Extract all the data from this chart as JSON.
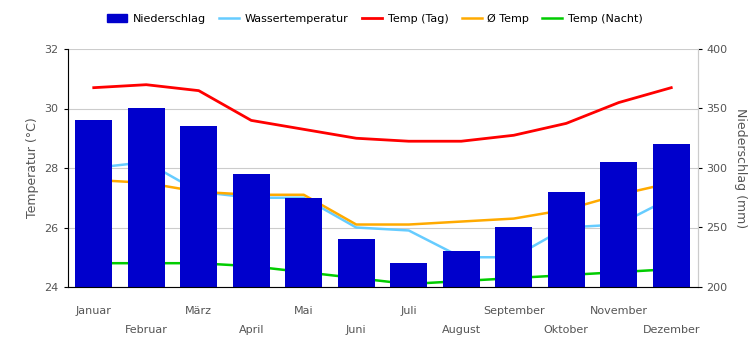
{
  "months": [
    "Januar",
    "Februar",
    "März",
    "April",
    "Mai",
    "Juni",
    "Juli",
    "August",
    "September",
    "Oktober",
    "November",
    "Dezember"
  ],
  "niederschlag": [
    340,
    350,
    335,
    295,
    275,
    240,
    220,
    230,
    250,
    280,
    305,
    320
  ],
  "wassertemperatur": [
    28.0,
    28.2,
    27.2,
    27.0,
    27.0,
    26.0,
    25.9,
    25.0,
    25.0,
    26.0,
    26.1,
    27.0
  ],
  "temp_tag": [
    30.7,
    30.8,
    30.6,
    29.6,
    29.3,
    29.0,
    28.9,
    28.9,
    29.1,
    29.5,
    30.2,
    30.7
  ],
  "avg_temp": [
    27.6,
    27.5,
    27.2,
    27.1,
    27.1,
    26.1,
    26.1,
    26.2,
    26.3,
    26.6,
    27.1,
    27.5
  ],
  "temp_nacht": [
    24.8,
    24.8,
    24.8,
    24.7,
    24.5,
    24.3,
    24.1,
    24.2,
    24.3,
    24.4,
    24.5,
    24.6
  ],
  "bar_color": "#0000cc",
  "wasser_color": "#66ccff",
  "tag_color": "#ff0000",
  "avg_color": "#ffaa00",
  "nacht_color": "#00cc00",
  "ylabel_left": "Temperatur (°C)",
  "ylabel_right": "Niederschlag (mm)",
  "ylim_left": [
    24,
    32
  ],
  "ylim_right": [
    200,
    400
  ],
  "yticks_left": [
    24,
    26,
    28,
    30,
    32
  ],
  "yticks_right": [
    200,
    250,
    300,
    350,
    400
  ],
  "legend_labels": [
    "Niederschlag",
    "Wassertemperatur",
    "Temp (Tag)",
    "Ø Temp",
    "Temp (Nacht)"
  ],
  "background_color": "#ffffff",
  "grid_color": "#cccccc",
  "spine_color": "#cccccc",
  "tick_color": "#555555",
  "label_fontsize": 8,
  "axis_label_fontsize": 9
}
